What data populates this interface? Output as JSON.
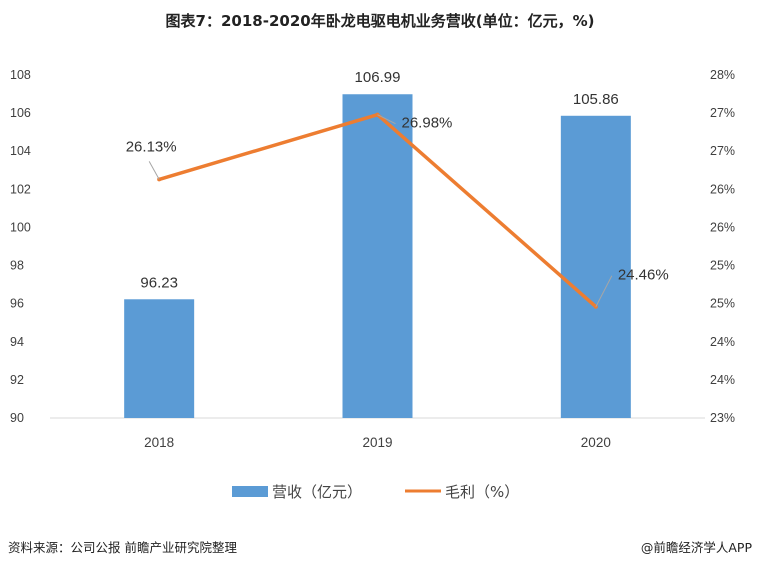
{
  "title_prefix": "图表7：",
  "title_main": "2018-2020年卧龙电驱电机业务营收(单位：亿元，%)",
  "footer": {
    "source": "资料来源：公司公报 前瞻产业研究院整理",
    "brand": "@前瞻经济学人APP"
  },
  "colors": {
    "bar": "#5b9bd5",
    "line": "#ed7d31",
    "axis": "#d9d9d9"
  },
  "chart_data": {
    "type": "bar",
    "categories": [
      "2018",
      "2019",
      "2020"
    ],
    "series": [
      {
        "name": "营收（亿元）",
        "type": "bar",
        "axis": "left",
        "values": [
          96.23,
          106.99,
          105.86
        ],
        "labels": [
          "96.23",
          "106.99",
          "105.86"
        ]
      },
      {
        "name": "毛利（%）",
        "type": "line",
        "axis": "right",
        "values": [
          26.13,
          26.98,
          24.46
        ],
        "labels": [
          "26.13%",
          "26.98%",
          "24.46%"
        ]
      }
    ],
    "y_left": {
      "min": 90,
      "max": 108,
      "step": 2,
      "ticks": [
        "90",
        "92",
        "94",
        "96",
        "98",
        "100",
        "102",
        "104",
        "106",
        "108"
      ]
    },
    "y_right": {
      "min": 23,
      "max": 27.5,
      "tick_labels": [
        "23%",
        "24%",
        "24%",
        "25%",
        "25%",
        "26%",
        "26%",
        "27%",
        "27%",
        "28%"
      ]
    },
    "legend": "bottom"
  }
}
